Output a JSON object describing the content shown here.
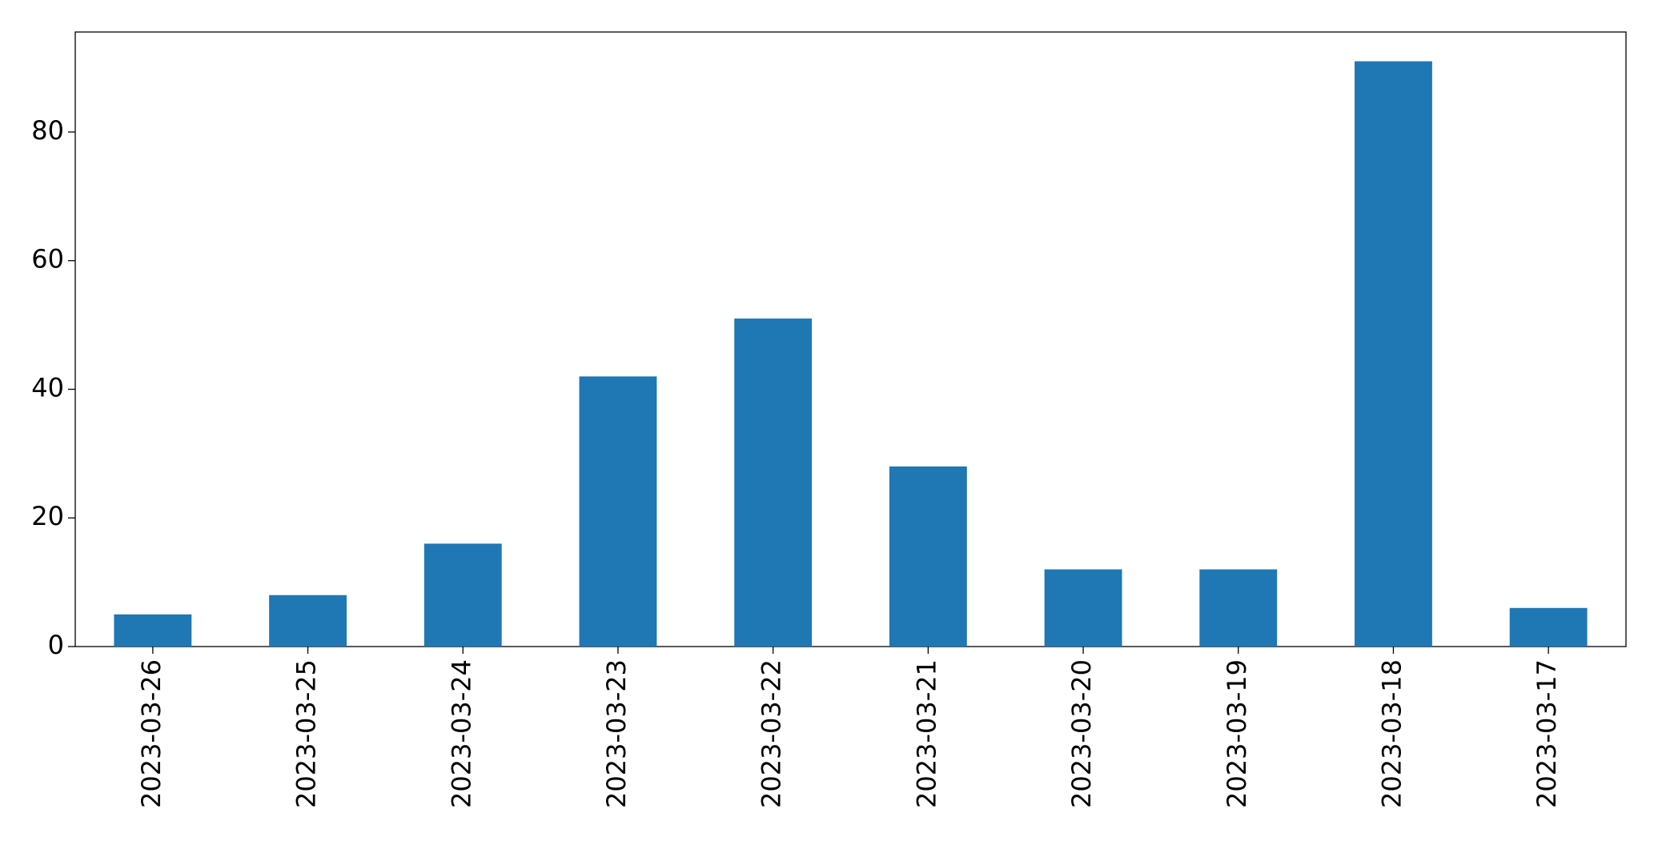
{
  "chart_data": {
    "type": "bar",
    "categories": [
      "2023-03-26",
      "2023-03-25",
      "2023-03-24",
      "2023-03-23",
      "2023-03-22",
      "2023-03-21",
      "2023-03-20",
      "2023-03-19",
      "2023-03-18",
      "2023-03-17"
    ],
    "values": [
      5,
      8,
      16,
      42,
      51,
      28,
      12,
      12,
      91,
      6
    ],
    "color": "#1f77b4",
    "ylim": [
      0,
      95.55
    ],
    "yticks": [
      0,
      20,
      40,
      60,
      80
    ],
    "grid": false
  }
}
